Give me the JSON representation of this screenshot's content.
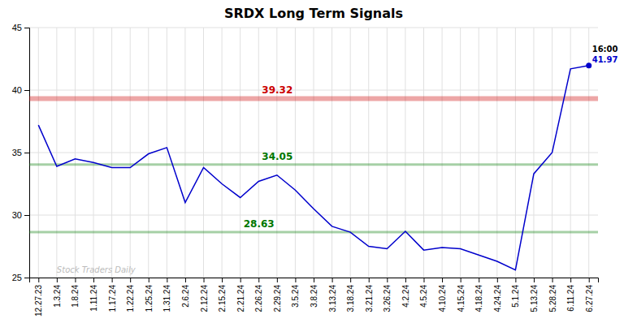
{
  "chart_data": {
    "type": "line",
    "title": "SRDX Long Term Signals",
    "categories": [
      "12.27.23",
      "1.3.24",
      "1.8.24",
      "1.11.24",
      "1.17.24",
      "1.22.24",
      "1.25.24",
      "1.31.24",
      "2.6.24",
      "2.12.24",
      "2.15.24",
      "2.21.24",
      "2.26.24",
      "2.29.24",
      "3.5.24",
      "3.8.24",
      "3.13.24",
      "3.18.24",
      "3.21.24",
      "3.26.24",
      "4.2.24",
      "4.5.24",
      "4.10.24",
      "4.15.24",
      "4.18.24",
      "4.24.24",
      "5.1.24",
      "5.13.24",
      "5.28.24",
      "6.11.24",
      "6.27.24"
    ],
    "values": [
      37.2,
      33.9,
      34.5,
      34.2,
      33.8,
      33.8,
      34.9,
      35.4,
      31.0,
      33.8,
      32.5,
      31.4,
      32.7,
      33.2,
      32.0,
      30.5,
      29.1,
      28.63,
      27.5,
      27.3,
      28.7,
      27.2,
      27.4,
      27.3,
      26.8,
      26.3,
      25.6,
      33.3,
      35.0,
      41.7,
      41.97
    ],
    "value_labels": [
      null,
      null,
      null,
      null,
      null,
      null,
      null,
      null,
      null,
      null,
      null,
      null,
      null,
      null,
      null,
      null,
      null,
      null,
      null,
      null,
      null,
      null,
      null,
      null,
      null,
      null,
      null,
      null,
      null,
      null,
      "41.97"
    ],
    "color": "#0000cc",
    "reference_lines": [
      {
        "value": 39.32,
        "label": "39.32",
        "color": "#cc0000"
      },
      {
        "value": 34.05,
        "label": "34.05",
        "color": "#007700"
      },
      {
        "value": 28.63,
        "label": "28.63",
        "color": "#007700"
      }
    ],
    "annotations": [
      "16:00",
      "Stock Traders Daily"
    ],
    "ylim": [
      25,
      45
    ],
    "yticks": [
      25,
      30,
      35,
      40,
      45
    ],
    "grid": true
  }
}
